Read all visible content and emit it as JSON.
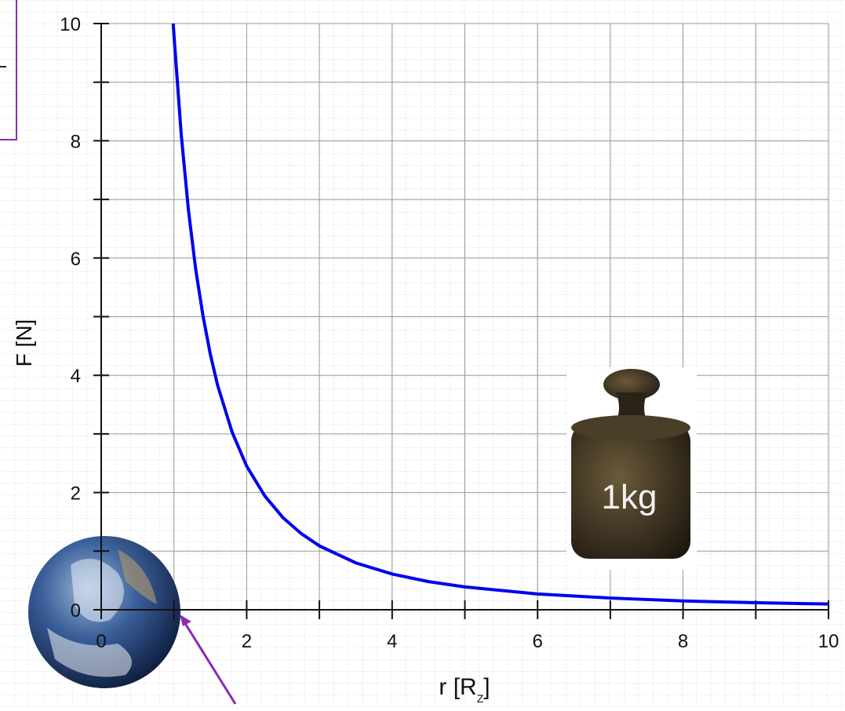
{
  "chart_data": {
    "type": "line",
    "y_label": "F [N]",
    "x_label": [
      "r [R",
      "Z",
      "]"
    ],
    "annotation": "1kg",
    "x": [
      0.99,
      1.0,
      1.1,
      1.2,
      1.3,
      1.4,
      1.5,
      1.6,
      1.8,
      2.0,
      2.25,
      2.5,
      2.75,
      3.0,
      3.5,
      4.0,
      4.5,
      5.0,
      6.0,
      7.0,
      8.0,
      9.0,
      10.0
    ],
    "series": [
      {
        "color": "#0000ee",
        "values": [
          10.0,
          9.81,
          8.11,
          6.81,
          5.8,
          5.01,
          4.36,
          3.83,
          3.03,
          2.45,
          1.94,
          1.57,
          1.3,
          1.09,
          0.8,
          0.61,
          0.48,
          0.39,
          0.27,
          0.2,
          0.15,
          0.12,
          0.098
        ]
      }
    ],
    "xlim": [
      0,
      10
    ],
    "ylim": [
      0,
      10
    ],
    "xticks": [
      0,
      2,
      4,
      6,
      8,
      10
    ],
    "yticks": [
      0,
      2,
      4,
      6,
      8,
      10
    ],
    "xminor_ticks": [
      1,
      3,
      5,
      7,
      9
    ],
    "yminor_ticks": [
      1,
      3,
      5,
      7,
      9
    ],
    "grid": true
  }
}
